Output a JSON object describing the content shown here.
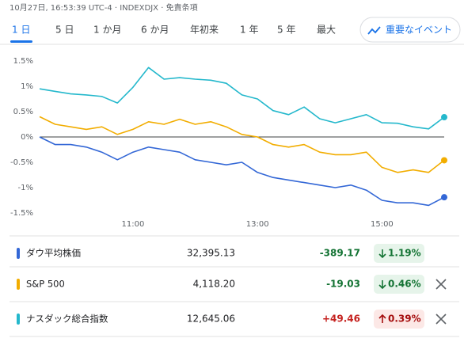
{
  "header": {
    "info": "10月27日, 16:53:39 UTC-4 · INDEXDJX · 免責条項"
  },
  "tabs": [
    "1 日",
    "5 日",
    "1 か月",
    "6 か月",
    "年初来",
    "1 年",
    "5 年",
    "最大"
  ],
  "events_button": "重要なイベント",
  "chart_data": {
    "type": "line",
    "x": [
      9.5,
      9.75,
      10,
      10.25,
      10.5,
      10.75,
      11,
      11.25,
      11.5,
      11.75,
      12,
      12.25,
      12.5,
      12.75,
      13,
      13.25,
      13.5,
      13.75,
      14,
      14.25,
      14.5,
      14.75,
      15,
      15.25,
      15.5,
      15.75,
      16
    ],
    "xlim": [
      9.5,
      16
    ],
    "xticks": [
      {
        "value": 11,
        "label": "11:00"
      },
      {
        "value": 13,
        "label": "13:00"
      },
      {
        "value": 15,
        "label": "15:00"
      }
    ],
    "ylim": [
      -1.5,
      1.5
    ],
    "yticks": [
      {
        "value": 1.5,
        "label": "1.5%"
      },
      {
        "value": 1,
        "label": "1%"
      },
      {
        "value": 0.5,
        "label": "0.5%"
      },
      {
        "value": 0,
        "label": "0%"
      },
      {
        "value": -0.5,
        "label": "-0.5%"
      },
      {
        "value": -1,
        "label": "-1%"
      },
      {
        "value": -1.5,
        "label": "-1.5%"
      }
    ],
    "series": [
      {
        "name": "ダウ平均株価",
        "color": "#3367d6",
        "values": [
          0.0,
          -0.15,
          -0.15,
          -0.2,
          -0.3,
          -0.45,
          -0.3,
          -0.2,
          -0.25,
          -0.3,
          -0.45,
          -0.5,
          -0.55,
          -0.5,
          -0.7,
          -0.8,
          -0.85,
          -0.9,
          -0.95,
          -1.0,
          -0.95,
          -1.05,
          -1.25,
          -1.3,
          -1.3,
          -1.35,
          -1.19
        ]
      },
      {
        "name": "S&P 500",
        "color": "#f2ad00",
        "values": [
          0.4,
          0.25,
          0.2,
          0.15,
          0.2,
          0.05,
          0.15,
          0.3,
          0.25,
          0.35,
          0.25,
          0.3,
          0.2,
          0.05,
          0.0,
          -0.15,
          -0.2,
          -0.15,
          -0.3,
          -0.35,
          -0.35,
          -0.3,
          -0.6,
          -0.7,
          -0.65,
          -0.7,
          -0.46
        ]
      },
      {
        "name": "ナスダック総合指数",
        "color": "#24b8cc",
        "values": [
          0.95,
          0.9,
          0.85,
          0.83,
          0.8,
          0.67,
          0.98,
          1.37,
          1.14,
          1.17,
          1.14,
          1.12,
          1.06,
          0.83,
          0.75,
          0.52,
          0.44,
          0.59,
          0.36,
          0.28,
          0.36,
          0.44,
          0.28,
          0.27,
          0.2,
          0.16,
          0.39
        ]
      }
    ]
  },
  "quotes": [
    {
      "price": "32,395.13",
      "change": "-389.17",
      "change_pct": "1.19%"
    },
    {
      "price": "4,118.20",
      "change": "-19.03",
      "change_pct": "0.46%"
    },
    {
      "price": "12,645.06",
      "change": "+49.46",
      "change_pct": "0.39%"
    }
  ]
}
